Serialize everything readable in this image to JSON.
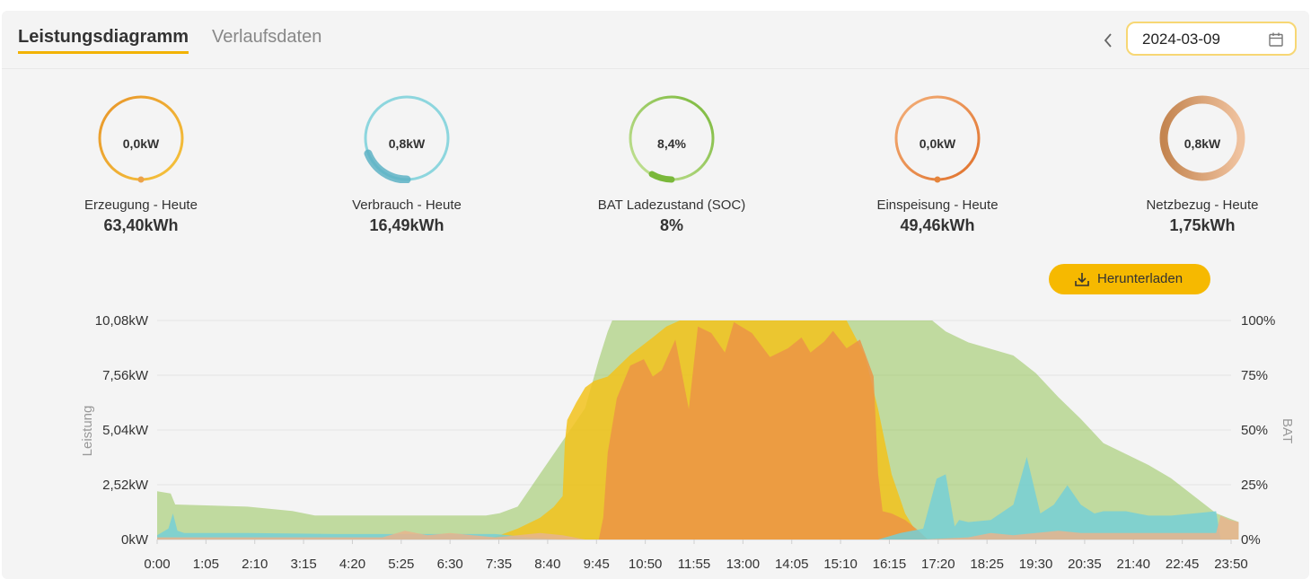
{
  "tabs": {
    "active": "Leistungsdiagramm",
    "other": "Verlaufsdaten"
  },
  "date": {
    "value": "2024-03-09"
  },
  "colors": {
    "erzeugung": "#e8a33a",
    "verbrauch": "#6bc3d0",
    "soc": "#8cc04a",
    "einspeisung": "#e5843b",
    "netzbezug": "#c9905e",
    "accent": "#f6b900"
  },
  "gauges": [
    {
      "value": "0,0kW",
      "label": "Erzeugung - Heute",
      "total": "63,40kWh"
    },
    {
      "value": "0,8kW",
      "label": "Verbrauch - Heute",
      "total": "16,49kWh"
    },
    {
      "value": "8,4%",
      "label": "BAT Ladezustand (SOC)",
      "total": "8%"
    },
    {
      "value": "0,0kW",
      "label": "Einspeisung - Heute",
      "total": "49,46kWh"
    },
    {
      "value": "0,8kW",
      "label": "Netzbezug - Heute",
      "total": "1,75kWh"
    }
  ],
  "download": {
    "label": "Herunterladen",
    "icon": "download-icon"
  },
  "chart_data": {
    "type": "area",
    "ylabel": "Leistung",
    "y2label": "BAT",
    "ylim": [
      0,
      10.08
    ],
    "y2lim": [
      0,
      100
    ],
    "yticks": [
      "0kW",
      "2,52kW",
      "5,04kW",
      "7,56kW",
      "10,08kW"
    ],
    "y2ticks": [
      "0%",
      "25%",
      "50%",
      "75%",
      "100%"
    ],
    "xticks": [
      "0:00",
      "1:05",
      "2:10",
      "3:15",
      "4:20",
      "5:25",
      "6:30",
      "7:35",
      "8:40",
      "9:45",
      "10:50",
      "11:55",
      "13:00",
      "14:05",
      "15:10",
      "16:15",
      "17:20",
      "18:25",
      "19:30",
      "20:35",
      "21:40",
      "22:45",
      "23:50"
    ],
    "grid": true,
    "series": [
      {
        "axis": "right",
        "color": "#8cc04a",
        "x": [
          0,
          0.3,
          0.4,
          2,
          3,
          3.5,
          7.3,
          7.6,
          8,
          8.5,
          9,
          9.5,
          9.8,
          10,
          10.1,
          11,
          12,
          13,
          14,
          15,
          16,
          16.5,
          17,
          17.2,
          17.5,
          18,
          19,
          19.5,
          20,
          20.5,
          21,
          22,
          22.5,
          23,
          23.5,
          24
        ],
        "y": [
          22,
          21,
          16,
          15,
          13,
          11,
          11,
          12,
          15,
          30,
          45,
          60,
          82,
          95,
          100,
          100,
          100,
          100,
          100,
          100,
          100,
          100,
          100,
          100,
          95,
          90,
          84,
          76,
          65,
          55,
          44,
          34,
          28,
          20,
          12,
          8
        ]
      },
      {
        "axis": "left",
        "color": "#f2c21c",
        "x": [
          0,
          7.3,
          7.6,
          8,
          8.3,
          8.5,
          8.8,
          9,
          9.05,
          9.1,
          9.3,
          9.5,
          9.7,
          10,
          10.5,
          11,
          11.3,
          11.6,
          12,
          12.5,
          13,
          13.5,
          14,
          14.5,
          15,
          15.3,
          15.7,
          16,
          16.3,
          16.6,
          16.8,
          17,
          17.1
        ],
        "y": [
          0,
          0,
          0.2,
          0.5,
          0.8,
          1,
          1.5,
          2,
          4.5,
          5.5,
          6.3,
          7,
          7.3,
          7.5,
          8.5,
          9.3,
          9.8,
          10.08,
          10.08,
          10.08,
          10.08,
          10.08,
          10.08,
          10.08,
          10.08,
          10.08,
          8.5,
          6,
          3,
          1.2,
          0.5,
          0.2,
          0
        ]
      },
      {
        "axis": "left",
        "color": "#ec9445",
        "x": [
          0,
          9.8,
          9.9,
          10,
          10.2,
          10.5,
          10.8,
          11,
          11.2,
          11.5,
          11.8,
          12,
          12.3,
          12.6,
          12.8,
          13.2,
          13.6,
          14,
          14.3,
          14.5,
          14.8,
          15,
          15.3,
          15.6,
          15.9,
          16,
          16.1,
          16.3,
          16.6,
          16.9,
          17.1
        ],
        "y": [
          0,
          0,
          1,
          4,
          6.5,
          8,
          8.3,
          7.5,
          7.8,
          9.2,
          6,
          9.8,
          9.5,
          8.6,
          10,
          9.5,
          8.4,
          8.8,
          9.3,
          8.6,
          9.1,
          9.6,
          8.8,
          9.2,
          7.5,
          3,
          1.3,
          1.2,
          0.9,
          0.4,
          0
        ]
      },
      {
        "axis": "left",
        "color": "#75cfd6",
        "x": [
          0,
          0.25,
          0.35,
          0.45,
          0.6,
          2,
          4,
          6,
          7.5,
          7.8,
          8.2,
          9,
          9.5,
          10,
          11,
          12,
          13,
          14,
          15,
          16,
          16.5,
          17,
          17.3,
          17.5,
          17.7,
          17.8,
          18,
          18.5,
          19,
          19.3,
          19.6,
          19.9,
          20.2,
          20.5,
          20.8,
          21,
          21.5,
          22,
          22.5,
          23,
          23.5,
          23.6,
          24
        ],
        "y": [
          0.2,
          0.5,
          1.2,
          0.4,
          0.3,
          0.3,
          0.25,
          0.25,
          0.25,
          0.2,
          0.1,
          0,
          0,
          0,
          0,
          0,
          0,
          0,
          0,
          0,
          0.3,
          0.5,
          2.8,
          3,
          0.6,
          0.9,
          0.8,
          0.9,
          1.6,
          3.8,
          1.2,
          1.6,
          2.5,
          1.6,
          1.2,
          1.3,
          1.3,
          1.1,
          1.1,
          1.2,
          1.3,
          0,
          0
        ]
      },
      {
        "axis": "left",
        "color": "#e7b48d",
        "x": [
          0,
          5,
          5.5,
          6,
          6.5,
          7,
          7.5,
          8,
          8.5,
          9,
          9.5,
          10,
          17,
          18,
          18.5,
          19,
          19.5,
          20,
          20.5,
          21,
          22,
          23,
          23.5,
          23.6,
          23.8,
          24
        ],
        "y": [
          0.1,
          0.1,
          0.4,
          0.2,
          0.3,
          0.2,
          0.1,
          0.2,
          0.3,
          0.2,
          0,
          0,
          0,
          0.1,
          0.3,
          0.2,
          0.3,
          0.4,
          0.3,
          0.3,
          0.3,
          0.3,
          0.3,
          1.1,
          0.9,
          0.8
        ]
      }
    ]
  }
}
